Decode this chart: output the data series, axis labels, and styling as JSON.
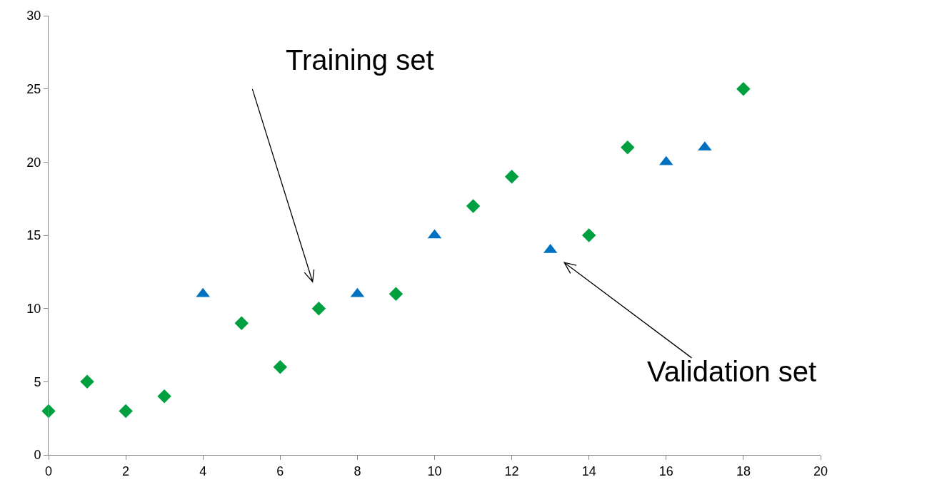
{
  "chart_data": {
    "type": "scatter",
    "xlim": [
      0,
      20
    ],
    "xticks": [
      0,
      2,
      4,
      6,
      8,
      10,
      12,
      14,
      16,
      18,
      20
    ],
    "ylim": [
      0,
      30
    ],
    "yticks": [
      0,
      5,
      10,
      15,
      20,
      25,
      30
    ],
    "grid": false,
    "series": [
      {
        "color": "#00a040",
        "marker": "diamond",
        "x": [
          0,
          1,
          2,
          3,
          5,
          6,
          7,
          9,
          11,
          12,
          14,
          15,
          18
        ],
        "values": [
          3,
          5,
          3,
          4,
          9,
          6,
          10,
          11,
          17,
          19,
          15,
          21,
          25
        ]
      },
      {
        "color": "#0070c0",
        "marker": "triangle",
        "x": [
          4,
          8,
          10,
          13,
          16,
          17
        ],
        "values": [
          11,
          11,
          15,
          14,
          20,
          21
        ]
      }
    ],
    "annotations": [
      "Training set",
      "Validation set"
    ]
  }
}
